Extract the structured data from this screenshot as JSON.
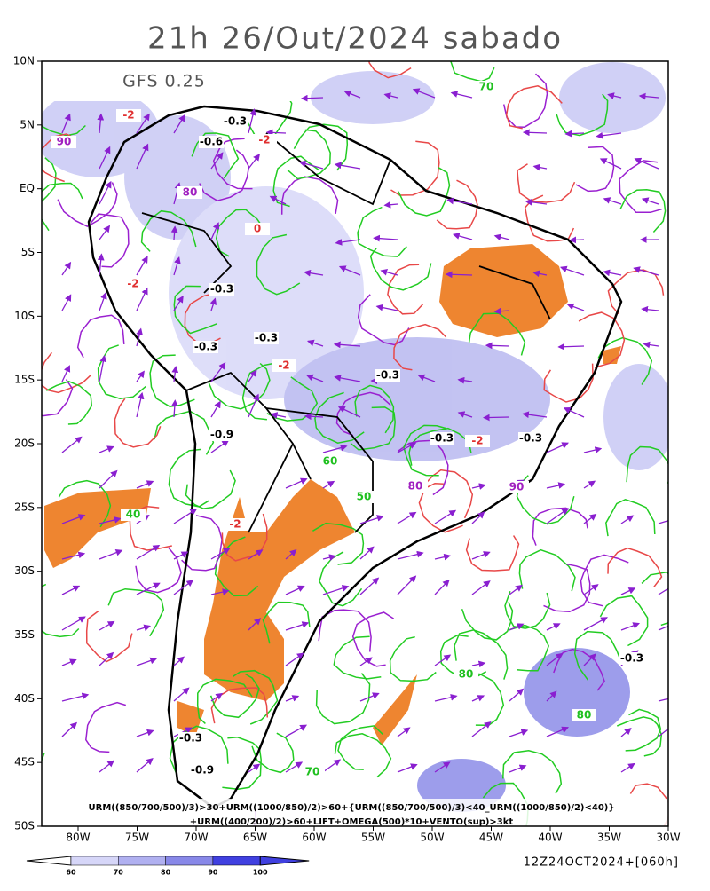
{
  "header": {
    "title": "21h 26/Out/2024 sabado",
    "model": "GFS 0.25"
  },
  "map": {
    "lat_labels": [
      "10N",
      "5N",
      "EQ",
      "5S",
      "10S",
      "15S",
      "20S",
      "25S",
      "30S",
      "35S",
      "40S",
      "45S",
      "50S"
    ],
    "lon_labels": [
      "80W",
      "75W",
      "70W",
      "65W",
      "60W",
      "55W",
      "50W",
      "45W",
      "40W",
      "35W",
      "30W"
    ],
    "contour_labels": [
      {
        "text": "-2",
        "color": "#e03030"
      },
      {
        "text": "-0.3",
        "color": "#000000"
      },
      {
        "text": "-0.6",
        "color": "#000000"
      },
      {
        "text": "90",
        "color": "#a020c0"
      },
      {
        "text": "80",
        "color": "#a020c0"
      },
      {
        "text": "-2",
        "color": "#e03030"
      },
      {
        "text": "0",
        "color": "#e03030"
      },
      {
        "text": "70",
        "color": "#20c020"
      },
      {
        "text": "-0.3",
        "color": "#000000"
      },
      {
        "text": "-2",
        "color": "#e03030"
      },
      {
        "text": "-0.3",
        "color": "#000000"
      },
      {
        "text": "-0.3",
        "color": "#000000"
      },
      {
        "text": "-2",
        "color": "#e03030"
      },
      {
        "text": "-0.3",
        "color": "#000000"
      },
      {
        "text": "-0.9",
        "color": "#000000"
      },
      {
        "text": "-0.3",
        "color": "#000000"
      },
      {
        "text": "-2",
        "color": "#e03030"
      },
      {
        "text": "-0.3",
        "color": "#000000"
      },
      {
        "text": "-2",
        "color": "#e03030"
      },
      {
        "text": "80",
        "color": "#a020c0"
      },
      {
        "text": "40",
        "color": "#20c020"
      },
      {
        "text": "50",
        "color": "#20c020"
      },
      {
        "text": "60",
        "color": "#20c020"
      },
      {
        "text": "70",
        "color": "#20c020"
      },
      {
        "text": "80",
        "color": "#20c020"
      },
      {
        "text": "-0.3",
        "color": "#000000"
      },
      {
        "text": "-0.9",
        "color": "#000000"
      },
      {
        "text": "90",
        "color": "#a020c0"
      },
      {
        "text": "80",
        "color": "#20c020"
      },
      {
        "text": "-0.3",
        "color": "#000000"
      }
    ]
  },
  "footer": {
    "formula_1": "URM((850/700/500)/3)>30+URM((1000/850)/2)>60+{URM((850/700/500)/3)<40_URM((1000/850)/2)<40)}",
    "formula_2": "+URM((400/200)/2)>60+LIFT+OMEGA(500)*10+VENTO(sup)>3kt",
    "run": "12Z24OCT2024+[060h]"
  },
  "colorbar": {
    "labels": [
      60,
      70,
      80,
      90,
      100
    ],
    "colors": [
      "#ffffff",
      "#d6d6f8",
      "#b0b0f0",
      "#8888e8",
      "#4040e0"
    ]
  }
}
